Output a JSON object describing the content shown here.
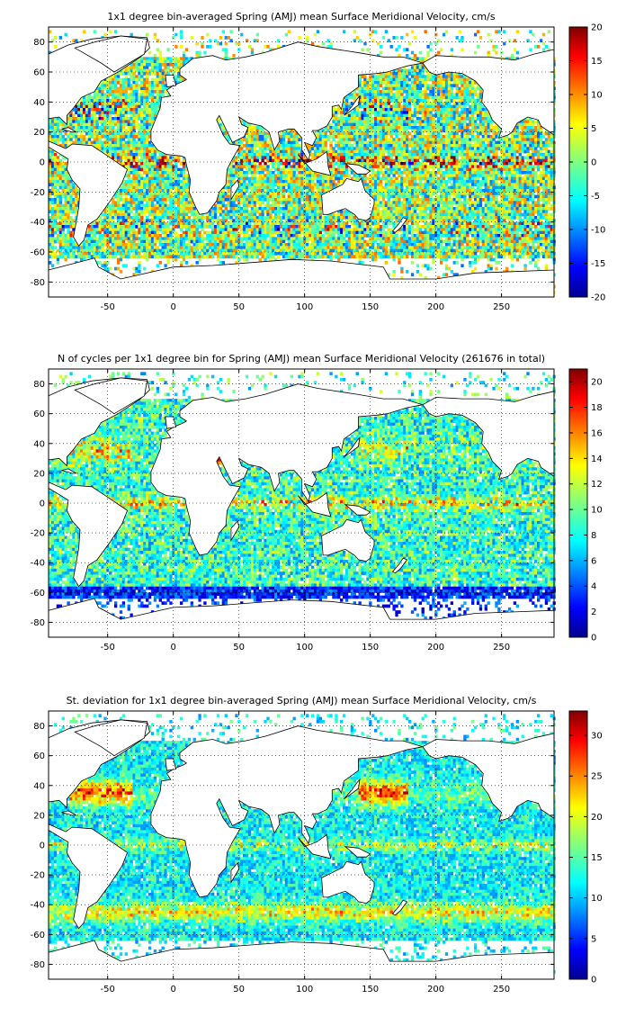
{
  "chart_data": [
    {
      "type": "heatmap",
      "title": "1x1 degree bin-averaged Spring (AMJ) mean Surface Meridional Velocity, cm/s",
      "xlim": [
        -95,
        290
      ],
      "ylim": [
        -90,
        90
      ],
      "xticks": [
        "-50",
        "0",
        "50",
        "100",
        "150",
        "200",
        "250"
      ],
      "xtick_values": [
        -50,
        0,
        50,
        100,
        150,
        200,
        250
      ],
      "yticks": [
        "80",
        "60",
        "40",
        "20",
        "0",
        "-20",
        "-40",
        "-60",
        "-80"
      ],
      "ytick_values": [
        80,
        60,
        40,
        20,
        0,
        -20,
        -40,
        -60,
        -80
      ],
      "colorbar": {
        "min": -20,
        "max": 20,
        "ticks": [
          "20",
          "15",
          "10",
          "5",
          "0",
          "-5",
          "-10",
          "-15",
          "-20"
        ],
        "tick_values": [
          20,
          15,
          10,
          5,
          0,
          -5,
          -10,
          -15,
          -20
        ]
      },
      "grid": true,
      "field": "velocity"
    },
    {
      "type": "heatmap",
      "title": "N of cycles per 1x1 degree bin for Spring (AMJ) mean Surface Meridional Velocity (261676 in total)",
      "xlim": [
        -95,
        290
      ],
      "ylim": [
        -90,
        90
      ],
      "xticks": [
        "-50",
        "0",
        "50",
        "100",
        "150",
        "200",
        "250"
      ],
      "xtick_values": [
        -50,
        0,
        50,
        100,
        150,
        200,
        250
      ],
      "yticks": [
        "80",
        "60",
        "40",
        "20",
        "0",
        "-20",
        "-40",
        "-60",
        "-80"
      ],
      "ytick_values": [
        80,
        60,
        40,
        20,
        0,
        -20,
        -40,
        -60,
        -80
      ],
      "colorbar": {
        "min": 0,
        "max": 21,
        "ticks": [
          "20",
          "18",
          "16",
          "14",
          "12",
          "10",
          "8",
          "6",
          "4",
          "2",
          "0"
        ],
        "tick_values": [
          20,
          18,
          16,
          14,
          12,
          10,
          8,
          6,
          4,
          2,
          0
        ]
      },
      "grid": true,
      "field": "count"
    },
    {
      "type": "heatmap",
      "title": "St. deviation for 1x1 degree bin-averaged Spring (AMJ) mean Surface Meridional Velocity, cm/s",
      "xlim": [
        -95,
        290
      ],
      "ylim": [
        -90,
        90
      ],
      "xticks": [
        "-50",
        "0",
        "50",
        "100",
        "150",
        "200",
        "250"
      ],
      "xtick_values": [
        -50,
        0,
        50,
        100,
        150,
        200,
        250
      ],
      "yticks": [
        "80",
        "60",
        "40",
        "20",
        "0",
        "-20",
        "-40",
        "-60",
        "-80"
      ],
      "ytick_values": [
        80,
        60,
        40,
        20,
        0,
        -20,
        -40,
        -60,
        -80
      ],
      "colorbar": {
        "min": 0,
        "max": 33,
        "ticks": [
          "30",
          "25",
          "20",
          "15",
          "10",
          "5",
          "0"
        ],
        "tick_values": [
          30,
          25,
          20,
          15,
          10,
          5,
          0
        ]
      },
      "grid": true,
      "field": "stdev"
    }
  ]
}
